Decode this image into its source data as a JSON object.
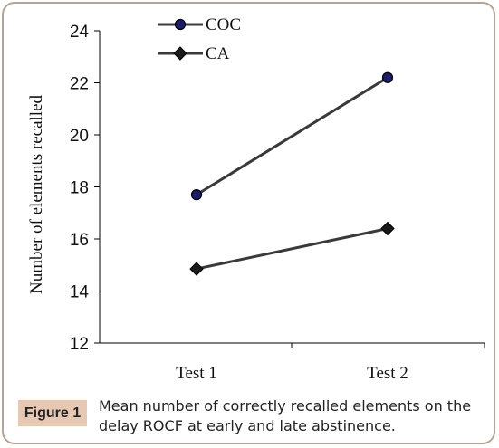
{
  "chart_data": {
    "type": "line",
    "categories": [
      "Test 1",
      "Test 2"
    ],
    "series": [
      {
        "name": "COC",
        "values": [
          17.7,
          22.2
        ],
        "marker": "circle",
        "marker_color": "#1c1c6e"
      },
      {
        "name": "CA",
        "values": [
          14.85,
          16.4
        ],
        "marker": "diamond",
        "marker_color": "#1a1a1a"
      }
    ],
    "ylabel": "Number of elements recalled",
    "xlabel": "",
    "ylim": [
      12,
      24
    ],
    "yticks": [
      "12",
      "14",
      "16",
      "18",
      "20",
      "22",
      "24"
    ],
    "grid": false,
    "legend_position": "top-center",
    "line_color": "#3a3a3a"
  },
  "caption": {
    "label": "Figure 1",
    "text": "Mean number of correctly recalled elements on the delay ROCF at early and late abstinence."
  }
}
